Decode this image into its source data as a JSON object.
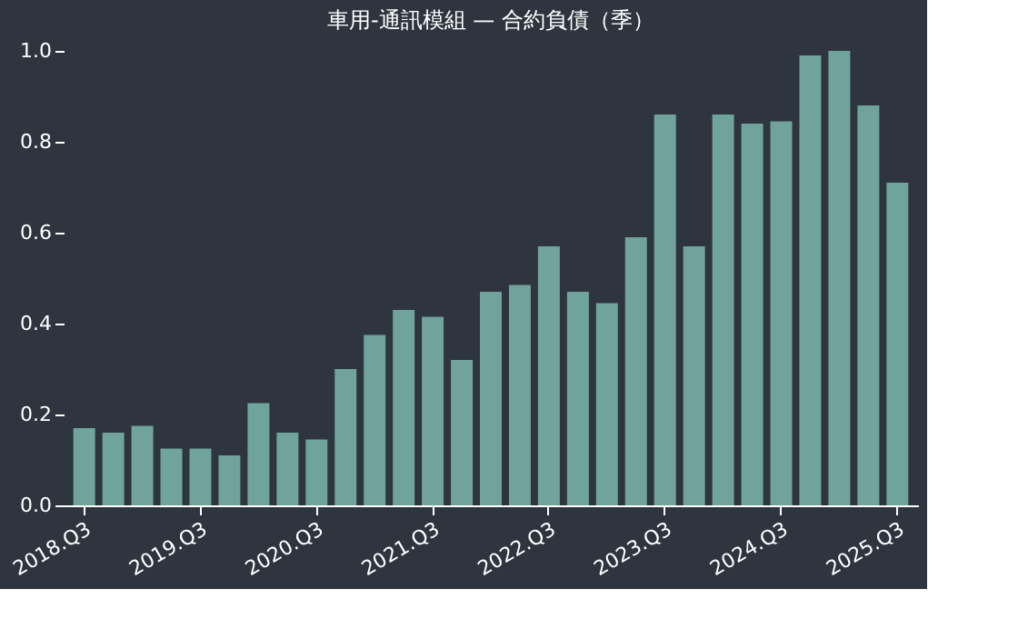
{
  "chart_data": {
    "type": "bar",
    "title": "車用-通訊模組 — 合約負債（季）",
    "categories": [
      "2018.Q3",
      null,
      null,
      null,
      "2019.Q3",
      null,
      null,
      null,
      "2020.Q3",
      null,
      null,
      null,
      "2021.Q3",
      null,
      null,
      null,
      "2022.Q3",
      null,
      null,
      null,
      "2023.Q3",
      null,
      null,
      null,
      "2024.Q3",
      null,
      null,
      null,
      "2025.Q3"
    ],
    "values": [
      0.17,
      0.16,
      0.175,
      0.125,
      0.125,
      0.11,
      0.225,
      0.16,
      0.145,
      0.3,
      0.375,
      0.43,
      0.415,
      0.32,
      0.47,
      0.485,
      0.57,
      0.47,
      0.445,
      0.59,
      0.86,
      0.57,
      0.86,
      0.84,
      0.845,
      0.99,
      1.0,
      0.88,
      0.71
    ],
    "color": "#6fa39b",
    "ylim": [
      0,
      1.0
    ],
    "yticks": [
      {
        "value": 0,
        "label": "0.0"
      },
      {
        "value": 0.2,
        "label": "0.2"
      },
      {
        "value": 0.4,
        "label": "0.4"
      },
      {
        "value": 0.6,
        "label": "0.6"
      },
      {
        "value": 0.8,
        "label": "0.8"
      },
      {
        "value": 1.0,
        "label": "1.0"
      }
    ],
    "grid": false
  }
}
